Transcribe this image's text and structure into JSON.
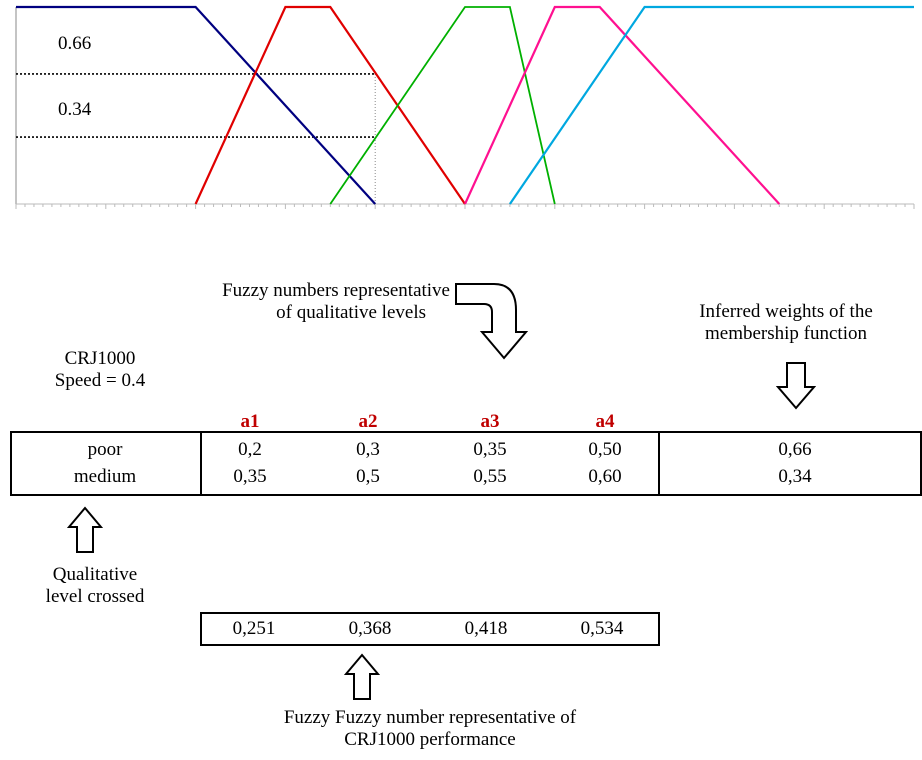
{
  "chart_data": {
    "type": "line",
    "title": "",
    "xlabel": "",
    "ylabel": "",
    "xlim": [
      0.0,
      1.0
    ],
    "ylim": [
      0,
      1
    ],
    "series": [
      {
        "color": "#000080",
        "points": [
          [
            0.0,
            1
          ],
          [
            0.2,
            1
          ],
          [
            0.4,
            0
          ]
        ]
      },
      {
        "color": "#e00000",
        "points": [
          [
            0.2,
            0
          ],
          [
            0.3,
            1
          ],
          [
            0.35,
            1
          ],
          [
            0.5,
            0
          ]
        ]
      },
      {
        "color": "#00b000",
        "points": [
          [
            0.35,
            0
          ],
          [
            0.5,
            1
          ],
          [
            0.55,
            1
          ],
          [
            0.6,
            0
          ]
        ]
      },
      {
        "color": "#ff1090",
        "points": [
          [
            0.5,
            0
          ],
          [
            0.6,
            1
          ],
          [
            0.65,
            1
          ],
          [
            0.85,
            0
          ]
        ]
      },
      {
        "color": "#00a8e0",
        "points": [
          [
            0.55,
            0
          ],
          [
            0.7,
            1
          ],
          [
            1.0,
            1
          ]
        ]
      }
    ],
    "reference_lines": [
      {
        "label": "0.66",
        "y": 0.66,
        "x_end": 0.4
      },
      {
        "label": "0.34",
        "y": 0.34,
        "x_end": 0.4
      }
    ],
    "speed_marker_x": 0.4
  },
  "labels": {
    "fuzzy_levels": "Fuzzy numbers representative of qualitative levels",
    "fuzzy_levels_line1": "Fuzzy numbers representative",
    "fuzzy_levels_line2": "of qualitative levels",
    "inferred_line1": "Inferred weights of the",
    "inferred_line2": "membership function",
    "aircraft": "CRJ1000",
    "speed": "Speed = 0.4",
    "qual_line1": "Qualitative",
    "qual_line2": "level crossed",
    "perf_line1": "Fuzzy Fuzzy number representative of",
    "perf_line2": "CRJ1000 performance"
  },
  "table": {
    "headers": [
      "a1",
      "a2",
      "a3",
      "a4"
    ],
    "rows": [
      {
        "level": "poor",
        "values": [
          "0,2",
          "0,3",
          "0,35",
          "0,50"
        ],
        "weight": "0,66"
      },
      {
        "level": "medium",
        "values": [
          "0,35",
          "0,5",
          "0,55",
          "0,60"
        ],
        "weight": "0,34"
      }
    ]
  },
  "performance": [
    "0,251",
    "0,368",
    "0,418",
    "0,534"
  ],
  "colors": {
    "header": "#c00000",
    "very_poor": "#000080",
    "poor": "#e00000",
    "medium": "#00b000",
    "good": "#ff1090",
    "very_good": "#00a8e0"
  }
}
